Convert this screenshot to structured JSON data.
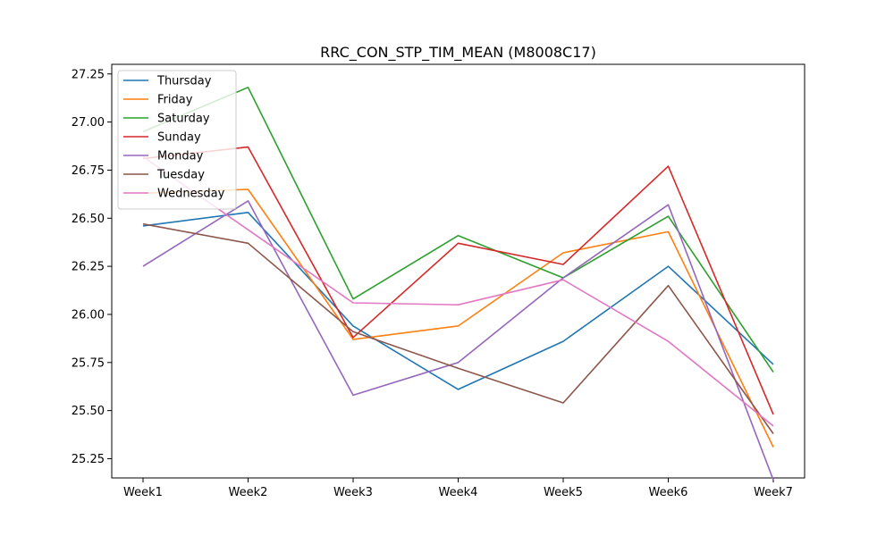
{
  "chart_data": {
    "type": "line",
    "title": "RRC_CON_STP_TIM_MEAN (M8008C17)",
    "xlabel": "",
    "ylabel": "",
    "categories": [
      "Week1",
      "Week2",
      "Week3",
      "Week4",
      "Week5",
      "Week6",
      "Week7"
    ],
    "ylim": [
      25.15,
      27.3
    ],
    "yticks": [
      "25.25",
      "25.50",
      "25.75",
      "26.00",
      "26.25",
      "26.50",
      "26.75",
      "27.00",
      "27.25"
    ],
    "grid": false,
    "legend_position": "upper-left",
    "series": [
      {
        "name": "Thursday",
        "color": "#1f77b4",
        "values": [
          26.46,
          26.53,
          25.94,
          25.61,
          25.86,
          26.25,
          25.74
        ]
      },
      {
        "name": "Friday",
        "color": "#ff7f0e",
        "values": [
          26.63,
          26.65,
          25.87,
          25.94,
          26.32,
          26.43,
          25.31
        ]
      },
      {
        "name": "Saturday",
        "color": "#2ca02c",
        "values": [
          26.95,
          27.18,
          26.08,
          26.41,
          26.19,
          26.51,
          25.7
        ]
      },
      {
        "name": "Sunday",
        "color": "#d62728",
        "values": [
          26.81,
          26.87,
          25.88,
          26.37,
          26.26,
          26.77,
          25.48
        ]
      },
      {
        "name": "Monday",
        "color": "#9467bd",
        "values": [
          26.25,
          26.59,
          25.58,
          25.75,
          26.19,
          26.57,
          25.14
        ]
      },
      {
        "name": "Tuesday",
        "color": "#8c564b",
        "values": [
          26.47,
          26.37,
          25.91,
          25.72,
          25.54,
          26.15,
          25.38
        ]
      },
      {
        "name": "Wednesday",
        "color": "#e377c2",
        "values": [
          26.82,
          26.44,
          26.06,
          26.05,
          26.18,
          25.86,
          25.42
        ]
      }
    ]
  }
}
